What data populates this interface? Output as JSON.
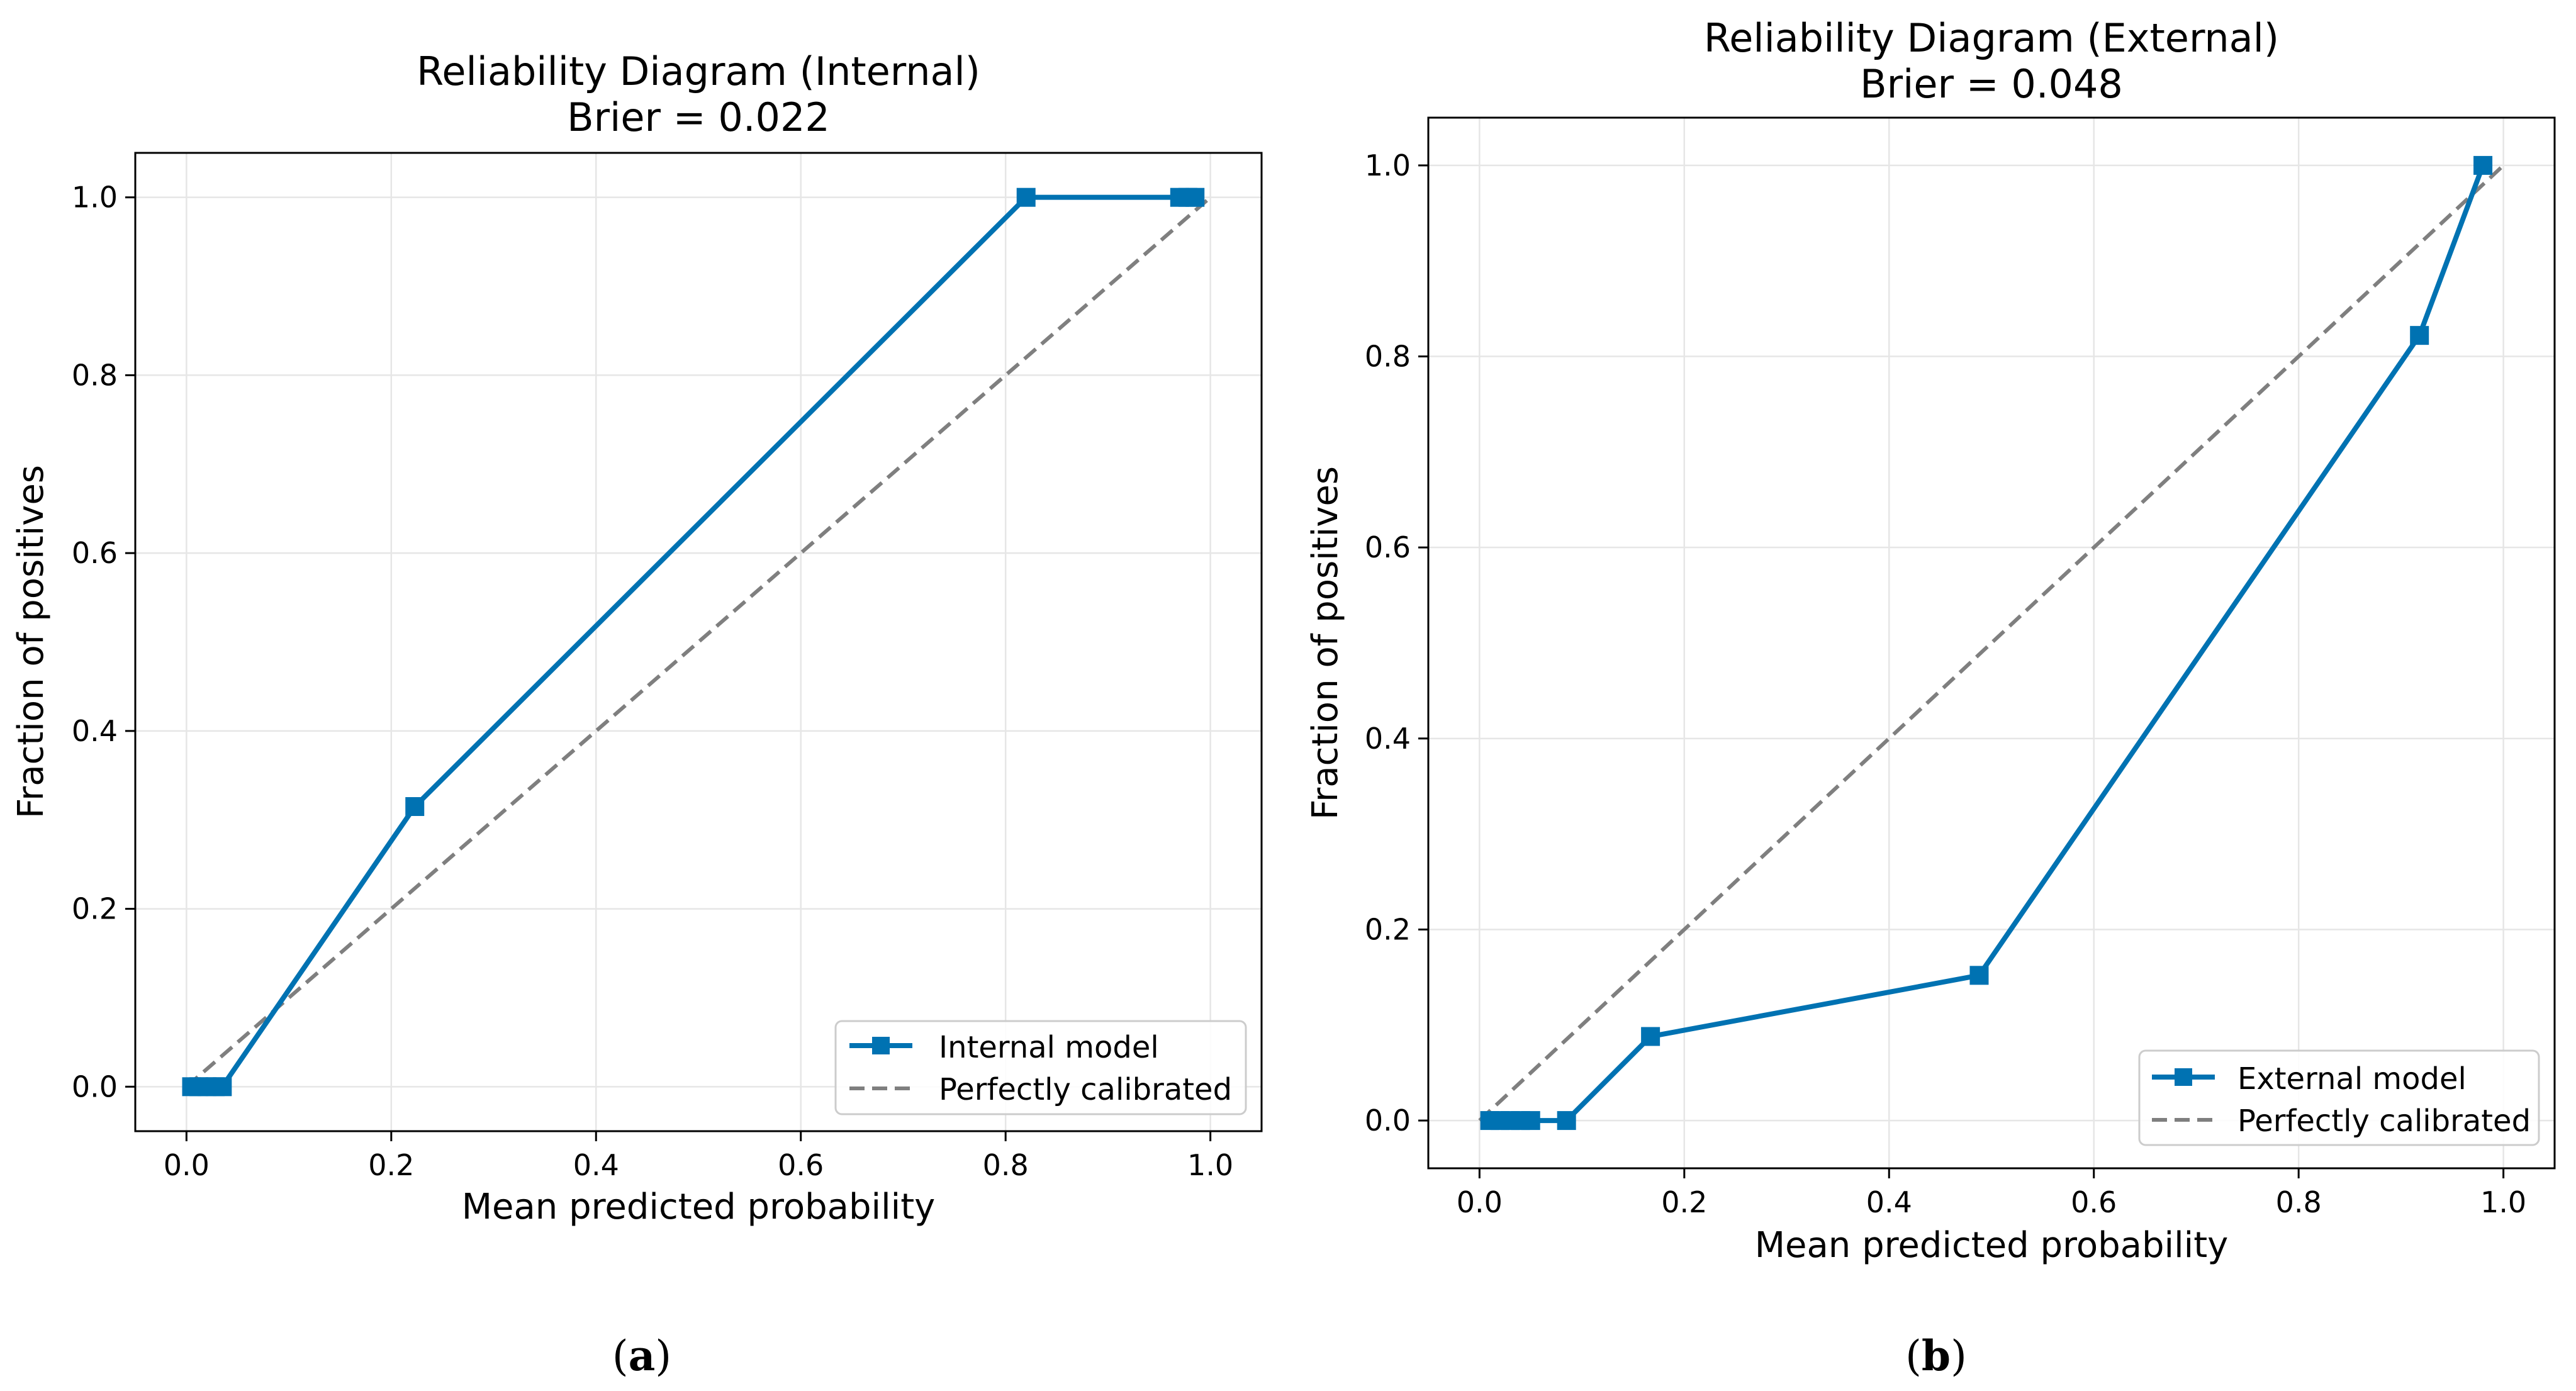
{
  "chart_data": [
    {
      "type": "line",
      "panel_label": "(a)",
      "panel_letter": "a",
      "title": "Reliability Diagram (Internal)",
      "subtitle": "Brier = 0.022",
      "xlabel": "Mean predicted probability",
      "ylabel": "Fraction of positives",
      "xlim": [
        -0.05,
        1.05
      ],
      "ylim": [
        -0.05,
        1.05
      ],
      "xticks": [
        0.0,
        0.2,
        0.4,
        0.6,
        0.8,
        1.0
      ],
      "yticks": [
        0.0,
        0.2,
        0.4,
        0.6,
        0.8,
        1.0
      ],
      "tick_labels": [
        "0.0",
        "0.2",
        "0.4",
        "0.6",
        "0.8",
        "1.0"
      ],
      "grid": true,
      "legend_position": "lower-right",
      "series": [
        {
          "name": "Internal model",
          "color": "#0072B2",
          "style": "solid",
          "marker": "square",
          "x": [
            0.005,
            0.012,
            0.02,
            0.028,
            0.035,
            0.223,
            0.82,
            0.97,
            0.978,
            0.985
          ],
          "y": [
            0.0,
            0.0,
            0.0,
            0.0,
            0.0,
            0.315,
            1.0,
            1.0,
            1.0,
            1.0
          ]
        },
        {
          "name": "Perfectly calibrated",
          "color": "#7f7f7f",
          "style": "dashed",
          "marker": "none",
          "x": [
            0.0,
            1.0
          ],
          "y": [
            0.0,
            1.0
          ]
        }
      ]
    },
    {
      "type": "line",
      "panel_label": "(b)",
      "panel_letter": "b",
      "title": "Reliability Diagram (External)",
      "subtitle": "Brier = 0.048",
      "xlabel": "Mean predicted probability",
      "ylabel": "Fraction of positives",
      "xlim": [
        -0.05,
        1.05
      ],
      "ylim": [
        -0.05,
        1.05
      ],
      "xticks": [
        0.0,
        0.2,
        0.4,
        0.6,
        0.8,
        1.0
      ],
      "yticks": [
        0.0,
        0.2,
        0.4,
        0.6,
        0.8,
        1.0
      ],
      "tick_labels": [
        "0.0",
        "0.2",
        "0.4",
        "0.6",
        "0.8",
        "1.0"
      ],
      "grid": true,
      "legend_position": "lower-right",
      "series": [
        {
          "name": "External model",
          "color": "#0072B2",
          "style": "solid",
          "marker": "square",
          "x": [
            0.01,
            0.02,
            0.03,
            0.04,
            0.05,
            0.085,
            0.167,
            0.488,
            0.918,
            0.98
          ],
          "y": [
            0.0,
            0.0,
            0.0,
            0.0,
            0.0,
            0.0,
            0.088,
            0.152,
            0.822,
            1.0
          ]
        },
        {
          "name": "Perfectly calibrated",
          "color": "#7f7f7f",
          "style": "dashed",
          "marker": "none",
          "x": [
            0.0,
            1.0
          ],
          "y": [
            0.0,
            1.0
          ]
        }
      ]
    }
  ]
}
